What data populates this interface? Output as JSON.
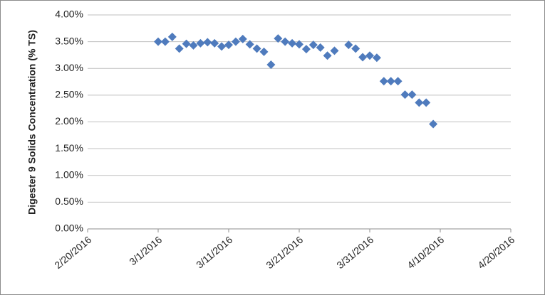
{
  "chart_data": {
    "type": "scatter",
    "y_label": "Digester 9 Solids Concentration (% TS)",
    "x": [
      "3/1/2016",
      "3/2/2016",
      "3/3/2016",
      "3/4/2016",
      "3/5/2016",
      "3/6/2016",
      "3/7/2016",
      "3/8/2016",
      "3/9/2016",
      "3/10/2016",
      "3/11/2016",
      "3/12/2016",
      "3/13/2016",
      "3/14/2016",
      "3/15/2016",
      "3/16/2016",
      "3/17/2016",
      "3/18/2016",
      "3/19/2016",
      "3/20/2016",
      "3/21/2016",
      "3/22/2016",
      "3/23/2016",
      "3/24/2016",
      "3/25/2016",
      "3/26/2016",
      "3/28/2016",
      "3/29/2016",
      "3/30/2016",
      "3/31/2016",
      "4/1/2016",
      "4/2/2016",
      "4/3/2016",
      "4/4/2016",
      "4/5/2016",
      "4/6/2016",
      "4/7/2016",
      "4/8/2016",
      "4/9/2016"
    ],
    "values": [
      3.5,
      3.5,
      3.59,
      3.37,
      3.46,
      3.43,
      3.47,
      3.49,
      3.47,
      3.41,
      3.44,
      3.5,
      3.55,
      3.45,
      3.37,
      3.31,
      3.07,
      3.56,
      3.5,
      3.47,
      3.45,
      3.36,
      3.44,
      3.39,
      3.24,
      3.33,
      3.44,
      3.37,
      3.21,
      3.24,
      3.2,
      2.76,
      2.76,
      2.76,
      2.51,
      2.51,
      2.36,
      2.36,
      1.96
    ],
    "color": "#4f7bbd",
    "xlim": [
      "2/20/2016",
      "4/20/2016"
    ],
    "xticks": [
      "2/20/2016",
      "3/1/2016",
      "3/11/2016",
      "3/21/2016",
      "3/31/2016",
      "4/10/2016",
      "4/20/2016"
    ],
    "ylim": [
      0,
      4
    ],
    "yticks": [
      {
        "value": 0,
        "label": "0.00%"
      },
      {
        "value": 0.5,
        "label": "0.50%"
      },
      {
        "value": 1,
        "label": "1.00%"
      },
      {
        "value": 1.5,
        "label": "1.50%"
      },
      {
        "value": 2,
        "label": "2.00%"
      },
      {
        "value": 2.5,
        "label": "2.50%"
      },
      {
        "value": 3,
        "label": "3.00%"
      },
      {
        "value": 3.5,
        "label": "3.50%"
      },
      {
        "value": 4,
        "label": "4.00%"
      }
    ],
    "grid": true
  }
}
